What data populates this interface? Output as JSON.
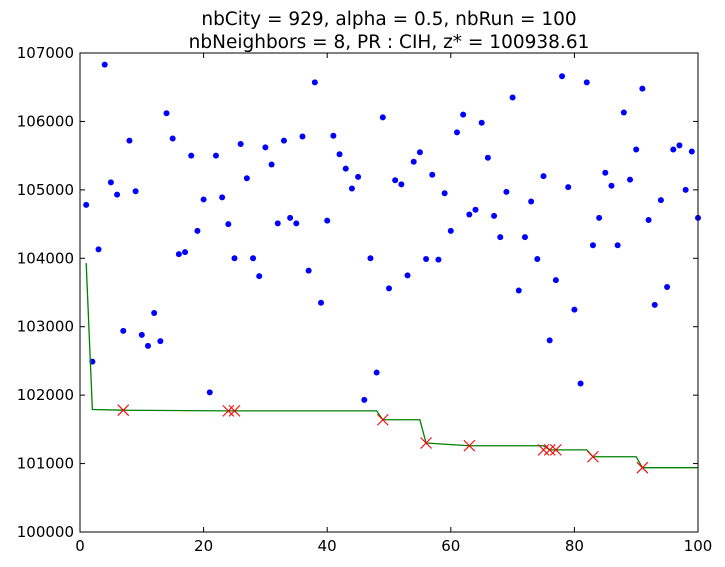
{
  "chart_data": {
    "type": "scatter",
    "title_line1": "nbCity = 929, alpha = 0.5, nbRun = 100",
    "title_line2": "nbNeighbors = 8, PR : CIH, z* = 100938.61",
    "xlim": [
      0,
      100
    ],
    "ylim": [
      100000,
      107000
    ],
    "xticks": [
      "0",
      "20",
      "40",
      "60",
      "80",
      "100"
    ],
    "yticks": [
      "100000",
      "101000",
      "102000",
      "103000",
      "104000",
      "105000",
      "106000",
      "107000"
    ],
    "grid": false,
    "series": [
      {
        "kind": "points",
        "color": "#0000ff",
        "x": [
          1,
          2,
          3,
          4,
          5,
          6,
          7,
          8,
          9,
          10,
          11,
          12,
          13,
          14,
          15,
          16,
          17,
          18,
          19,
          20,
          21,
          22,
          23,
          24,
          25,
          26,
          27,
          28,
          29,
          30,
          31,
          32,
          33,
          34,
          35,
          36,
          37,
          38,
          39,
          40,
          41,
          42,
          43,
          44,
          45,
          46,
          47,
          48,
          49,
          50,
          51,
          52,
          53,
          54,
          55,
          56,
          57,
          58,
          59,
          60,
          61,
          62,
          63,
          64,
          65,
          66,
          67,
          68,
          69,
          70,
          71,
          72,
          73,
          74,
          75,
          76,
          77,
          78,
          79,
          80,
          81,
          82,
          83,
          84,
          85,
          86,
          87,
          88,
          89,
          90,
          91,
          92,
          93,
          94,
          95,
          96,
          97,
          98,
          99,
          100
        ],
        "y": [
          104780,
          102490,
          104130,
          106830,
          105110,
          104930,
          102940,
          105720,
          104980,
          102880,
          102720,
          103200,
          102790,
          106120,
          105750,
          104060,
          104090,
          105500,
          104400,
          104860,
          102040,
          105500,
          104890,
          104500,
          104000,
          105670,
          105170,
          104000,
          103740,
          105620,
          105370,
          104510,
          105720,
          104590,
          104510,
          105780,
          103820,
          106570,
          103350,
          104550,
          105790,
          105520,
          105310,
          105020,
          105190,
          101930,
          104000,
          102330,
          106060,
          103560,
          105140,
          105080,
          103750,
          105410,
          105550,
          103990,
          105220,
          103980,
          104950,
          104400,
          105840,
          106100,
          104640,
          104710,
          105980,
          105470,
          104620,
          104310,
          104970,
          106350,
          103530,
          104310,
          104830,
          103990,
          105200,
          102800,
          103680,
          106660,
          105040,
          103250,
          102170,
          106570,
          104190,
          104590,
          105250,
          105060,
          104190,
          106130,
          105150,
          105590,
          106480,
          104560,
          103320,
          104850,
          103580,
          105590,
          105650,
          105000,
          105560,
          104590
        ]
      },
      {
        "kind": "line",
        "color": "#008000",
        "x": [
          1,
          2,
          7,
          24,
          25,
          48,
          49,
          55,
          56,
          63,
          75,
          76,
          77,
          82,
          83,
          90,
          91,
          100
        ],
        "y": [
          103930,
          101790,
          101780,
          101770,
          101770,
          101770,
          101640,
          101640,
          101300,
          101260,
          101260,
          101200,
          101200,
          101200,
          101100,
          101100,
          100940,
          100940
        ]
      },
      {
        "kind": "markers",
        "color": "#ff0000",
        "x": [
          7,
          24,
          25,
          49,
          56,
          63,
          75,
          76,
          77,
          83,
          91
        ],
        "y": [
          101780,
          101770,
          101770,
          101640,
          101300,
          101260,
          101200,
          101200,
          101200,
          101100,
          100940
        ]
      }
    ]
  }
}
